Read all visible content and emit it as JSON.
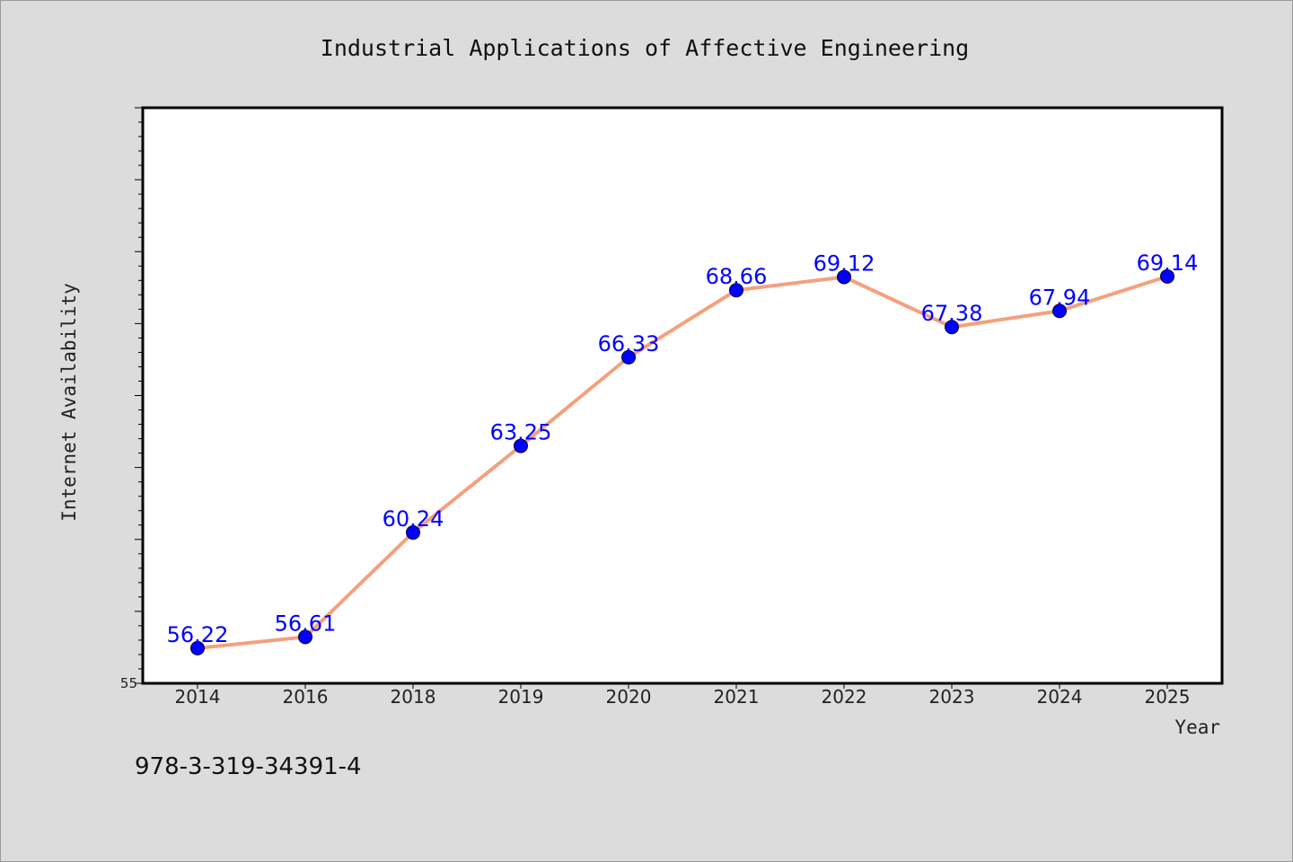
{
  "colors": {
    "background": "#dcdcdc",
    "plot_background": "#ffffff",
    "line": "#f4a07e",
    "marker": "#0000ff",
    "label": "#0000ff"
  },
  "footnote": "978-3-319-34391-4",
  "chart_data": {
    "type": "line",
    "title": "Industrial Applications of Affective Engineering",
    "xlabel": "Year",
    "ylabel": "Internet Availability",
    "categories": [
      "2014",
      "2016",
      "2018",
      "2019",
      "2020",
      "2021",
      "2022",
      "2023",
      "2024",
      "2025"
    ],
    "series": [
      {
        "values": [
          56.22,
          56.61,
          60.24,
          63.25,
          66.33,
          68.66,
          69.12,
          67.38,
          67.94,
          69.14
        ],
        "labels": [
          "56.22",
          "56.61",
          "60.24",
          "63.25",
          "66.33",
          "68.66",
          "69.12",
          "67.38",
          "67.94",
          "69.14"
        ]
      }
    ],
    "ylim": [
      55,
      75
    ],
    "yticks_labeled": [
      "55"
    ],
    "grid": false,
    "legend": "none"
  }
}
